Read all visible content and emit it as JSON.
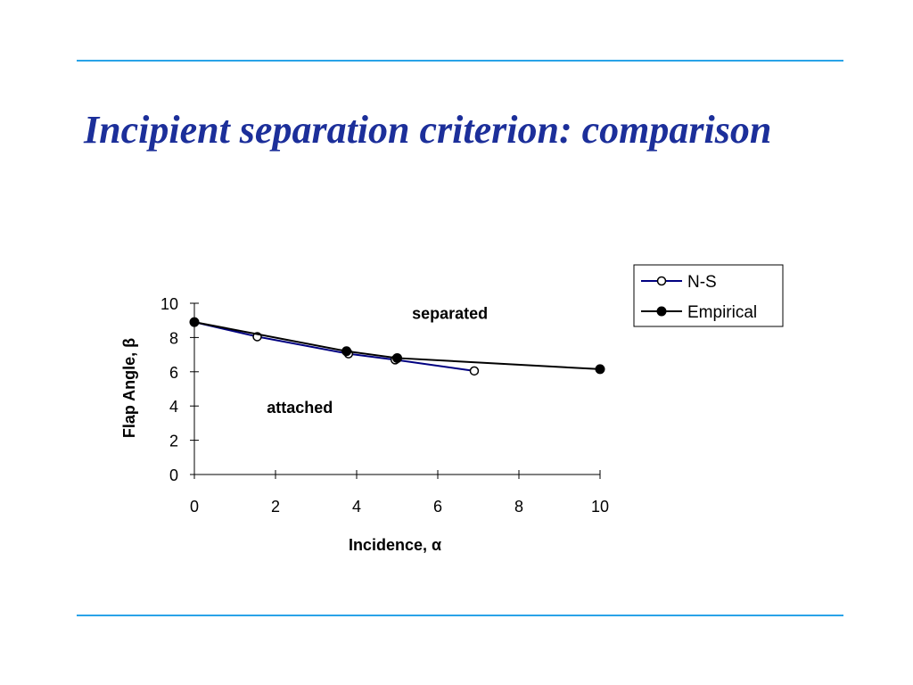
{
  "slide": {
    "title": "Incipient separation criterion: comparison",
    "title_color": "#1c2f9a",
    "rule_color": "#29a3e8"
  },
  "chart_data": {
    "type": "line",
    "title": "",
    "xlabel": "Incidence, α",
    "ylabel": "Flap Angle, β",
    "xlim": [
      0,
      10
    ],
    "ylim": [
      0,
      10
    ],
    "xticks": [
      "0",
      "2",
      "4",
      "6",
      "8",
      "10"
    ],
    "yticks": [
      "0",
      "2",
      "4",
      "6",
      "8",
      "10"
    ],
    "grid": false,
    "legend": "top-right",
    "series": [
      {
        "name": "N-S",
        "marker": "open-circle",
        "color": "#000080",
        "x": [
          0,
          1.55,
          3.8,
          4.95,
          6.9
        ],
        "y": [
          8.9,
          8.05,
          7.05,
          6.7,
          6.05
        ]
      },
      {
        "name": "Empirical",
        "marker": "filled-circle",
        "color": "#000000",
        "x": [
          0,
          3.75,
          5,
          10
        ],
        "y": [
          8.9,
          7.2,
          6.8,
          6.15
        ]
      }
    ],
    "annotations": [
      {
        "text": "separated",
        "x": 6.3,
        "y": 9.1
      },
      {
        "text": "attached",
        "x": 2.6,
        "y": 3.6
      }
    ]
  }
}
